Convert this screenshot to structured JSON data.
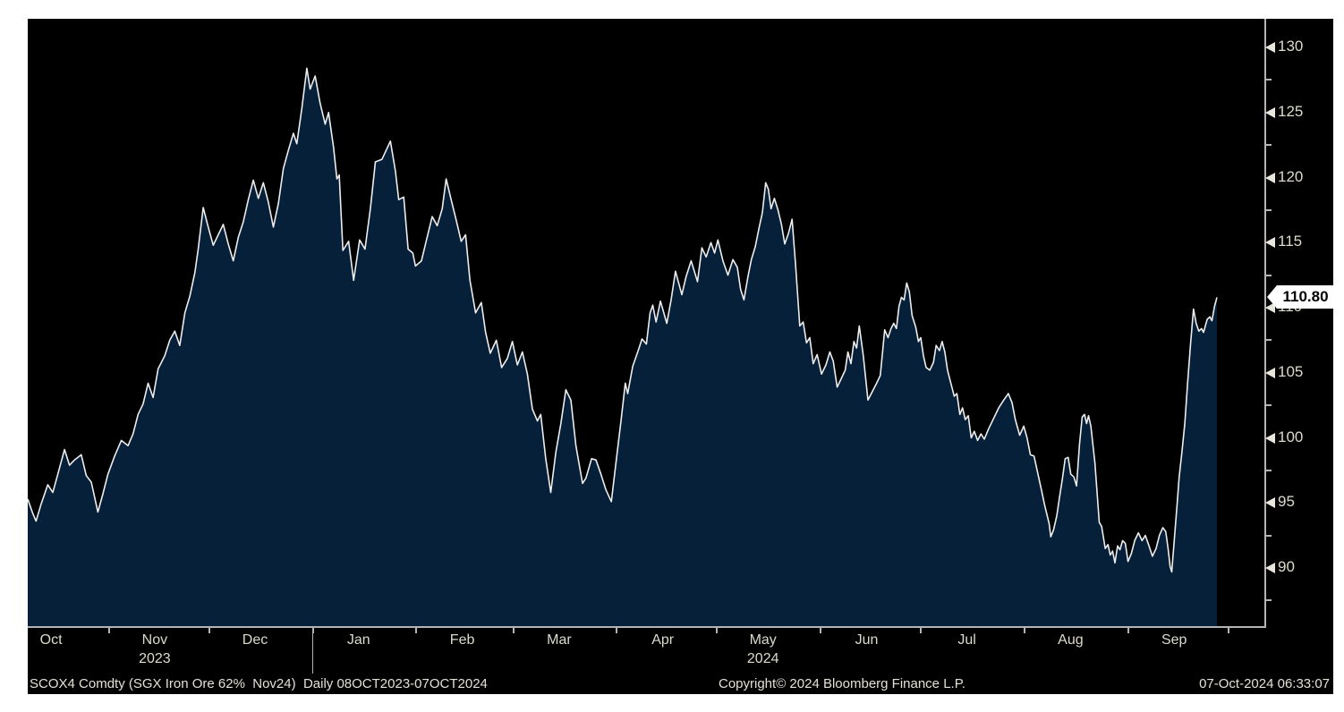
{
  "colors": {
    "page_bg": "#ffffff",
    "panel_bg": "#000000",
    "area_fill": "#07203a",
    "line": "#ededed",
    "axis": "#b4b4b4",
    "tick_label": "#dddacb",
    "footer_text": "#e4e1d6",
    "price_tag_bg": "#ffffff",
    "price_tag_text": "#000000"
  },
  "footer": {
    "left": "SCOX4 Comdty (SGX Iron Ore 62%  Nov24)  Daily 08OCT2023-07OCT2024",
    "center": "Copyright© 2024 Bloomberg Finance L.P.",
    "right": "07-Oct-2024 06:33:07"
  },
  "chart_data": {
    "type": "area",
    "title": "SCOX4 Comdty (SGX Iron Ore 62% Nov24) Daily 08OCT2023-07OCT2024",
    "security": "SCOX4 Comdty",
    "description": "SGX Iron Ore 62% Nov24",
    "period": "Daily 08OCT2023-07OCT2024",
    "last_price": "110.80",
    "legend_position": "none",
    "grid": false,
    "y_axis": {
      "side": "right",
      "major_ticks": [
        130,
        125,
        120,
        115,
        110,
        105,
        100,
        95,
        90
      ],
      "minor_ticks": [
        127.5,
        122.5,
        117.5,
        112.5,
        107.5,
        102.5,
        97.5,
        92.5,
        87.5
      ],
      "top_value": 132.2,
      "bottom_value": 85.5
    },
    "x_axis": {
      "domain_days": 370,
      "start_date": "08OCT2023",
      "end_date": "07OCT2024",
      "month_start_ticks_d": [
        24,
        54,
        85,
        116,
        145,
        176,
        206,
        237,
        267,
        298,
        329,
        359
      ],
      "month_labels": [
        {
          "label": "Oct",
          "d": 7
        },
        {
          "label": "Nov",
          "d": 38
        },
        {
          "label": "Dec",
          "d": 68
        },
        {
          "label": "Jan",
          "d": 99
        },
        {
          "label": "Feb",
          "d": 130
        },
        {
          "label": "Mar",
          "d": 159
        },
        {
          "label": "Apr",
          "d": 190
        },
        {
          "label": "May",
          "d": 220
        },
        {
          "label": "Jun",
          "d": 251
        },
        {
          "label": "Jul",
          "d": 281
        },
        {
          "label": "Aug",
          "d": 312
        },
        {
          "label": "Sep",
          "d": 343
        }
      ],
      "year_labels": [
        {
          "label": "2023",
          "d": 38
        },
        {
          "label": "2024",
          "d": 220
        }
      ],
      "year_separator_d": 85
    },
    "series_name": "SGX Iron Ore 62% Nov24 price (USD/t)",
    "series": [
      [
        0,
        95.3
      ],
      [
        1.5,
        94.2
      ],
      [
        2.5,
        93.6
      ],
      [
        4,
        94.9
      ],
      [
        6,
        96.4
      ],
      [
        7.5,
        95.8
      ],
      [
        9,
        97.2
      ],
      [
        11,
        99.1
      ],
      [
        12.5,
        97.9
      ],
      [
        14,
        98.3
      ],
      [
        16,
        98.7
      ],
      [
        17.5,
        97.1
      ],
      [
        19,
        96.6
      ],
      [
        21,
        94.3
      ],
      [
        22.5,
        95.7
      ],
      [
        24,
        97.2
      ],
      [
        26,
        98.6
      ],
      [
        28,
        99.8
      ],
      [
        30,
        99.4
      ],
      [
        31.5,
        100.3
      ],
      [
        33,
        101.8
      ],
      [
        34.5,
        102.6
      ],
      [
        36,
        104.2
      ],
      [
        37.5,
        103.1
      ],
      [
        39,
        105.3
      ],
      [
        41,
        106.3
      ],
      [
        42.5,
        107.5
      ],
      [
        44,
        108.2
      ],
      [
        45.5,
        107.1
      ],
      [
        47,
        109.6
      ],
      [
        48.5,
        110.9
      ],
      [
        50,
        112.7
      ],
      [
        51,
        114.5
      ],
      [
        52.5,
        117.7
      ],
      [
        54,
        116.2
      ],
      [
        55.5,
        114.8
      ],
      [
        57,
        115.6
      ],
      [
        58.5,
        116.4
      ],
      [
        60,
        114.9
      ],
      [
        61.5,
        113.6
      ],
      [
        63,
        115.4
      ],
      [
        64.5,
        116.6
      ],
      [
        66,
        118.3
      ],
      [
        67.5,
        119.8
      ],
      [
        69,
        118.4
      ],
      [
        70.5,
        119.6
      ],
      [
        72,
        118.1
      ],
      [
        73.5,
        116.2
      ],
      [
        75,
        118.0
      ],
      [
        76.5,
        120.7
      ],
      [
        78,
        122.1
      ],
      [
        79.5,
        123.4
      ],
      [
        80.5,
        122.6
      ],
      [
        82,
        125.3
      ],
      [
        83.5,
        128.4
      ],
      [
        84.5,
        126.8
      ],
      [
        86,
        127.8
      ],
      [
        87.5,
        125.7
      ],
      [
        89,
        124.1
      ],
      [
        90,
        125.0
      ],
      [
        91.5,
        122.3
      ],
      [
        92.5,
        119.9
      ],
      [
        93.2,
        120.2
      ],
      [
        94.3,
        114.4
      ],
      [
        96,
        115.1
      ],
      [
        97.5,
        112.1
      ],
      [
        99.3,
        115.2
      ],
      [
        100.9,
        114.5
      ],
      [
        102.5,
        117.6
      ],
      [
        104,
        121.2
      ],
      [
        106,
        121.4
      ],
      [
        108.5,
        122.8
      ],
      [
        110,
        120.5
      ],
      [
        111,
        118.3
      ],
      [
        112.5,
        118.5
      ],
      [
        113.8,
        114.5
      ],
      [
        115.2,
        114.2
      ],
      [
        116,
        113.2
      ],
      [
        117.8,
        113.6
      ],
      [
        119.5,
        115.4
      ],
      [
        121,
        117.0
      ],
      [
        122.5,
        116.3
      ],
      [
        124,
        117.6
      ],
      [
        125.2,
        119.9
      ],
      [
        126.5,
        118.5
      ],
      [
        128.5,
        116.4
      ],
      [
        129.7,
        115.1
      ],
      [
        131,
        115.6
      ],
      [
        132.3,
        112.1
      ],
      [
        134,
        109.6
      ],
      [
        135.7,
        110.4
      ],
      [
        137,
        108.1
      ],
      [
        138.4,
        106.5
      ],
      [
        140.2,
        107.5
      ],
      [
        141.8,
        105.4
      ],
      [
        143.5,
        106.1
      ],
      [
        145,
        107.4
      ],
      [
        146.5,
        105.6
      ],
      [
        148,
        106.6
      ],
      [
        149.5,
        104.9
      ],
      [
        151,
        102.2
      ],
      [
        152.5,
        101.3
      ],
      [
        153.5,
        101.8
      ],
      [
        155,
        98.4
      ],
      [
        156.5,
        95.8
      ],
      [
        158,
        98.9
      ],
      [
        159.5,
        101.1
      ],
      [
        161,
        103.7
      ],
      [
        162.5,
        102.9
      ],
      [
        164,
        99.4
      ],
      [
        166,
        96.5
      ],
      [
        167,
        96.9
      ],
      [
        168.7,
        98.4
      ],
      [
        170,
        98.3
      ],
      [
        171.5,
        97.2
      ],
      [
        173,
        96.0
      ],
      [
        174.6,
        95.1
      ],
      [
        176,
        98.1
      ],
      [
        177.5,
        101.3
      ],
      [
        178.8,
        104.2
      ],
      [
        179.5,
        103.4
      ],
      [
        181,
        105.5
      ],
      [
        182.5,
        106.6
      ],
      [
        183.8,
        107.6
      ],
      [
        185.1,
        107.2
      ],
      [
        186.2,
        109.6
      ],
      [
        187,
        110.2
      ],
      [
        188,
        108.9
      ],
      [
        189.3,
        110.5
      ],
      [
        191.2,
        108.8
      ],
      [
        192.5,
        110.6
      ],
      [
        193.8,
        112.8
      ],
      [
        195.7,
        111.0
      ],
      [
        197,
        112.4
      ],
      [
        198.5,
        113.6
      ],
      [
        200.4,
        112.0
      ],
      [
        201.7,
        114.6
      ],
      [
        203,
        113.9
      ],
      [
        204.4,
        115.0
      ],
      [
        205.5,
        114.2
      ],
      [
        206.5,
        115.2
      ],
      [
        208,
        113.6
      ],
      [
        209.5,
        112.5
      ],
      [
        211,
        113.7
      ],
      [
        212.3,
        113.1
      ],
      [
        213.3,
        111.4
      ],
      [
        214.3,
        110.6
      ],
      [
        215.5,
        112.4
      ],
      [
        216.5,
        113.7
      ],
      [
        217.7,
        114.7
      ],
      [
        218.8,
        116.1
      ],
      [
        219.8,
        117.3
      ],
      [
        220.8,
        119.6
      ],
      [
        221.6,
        119.1
      ],
      [
        222.4,
        117.6
      ],
      [
        223.4,
        118.4
      ],
      [
        224.5,
        117.5
      ],
      [
        225.5,
        116.4
      ],
      [
        226.5,
        114.9
      ],
      [
        227.6,
        115.7
      ],
      [
        228.7,
        116.8
      ],
      [
        229.7,
        113.4
      ],
      [
        231,
        108.6
      ],
      [
        232,
        108.9
      ],
      [
        233,
        107.3
      ],
      [
        234,
        107.7
      ],
      [
        235,
        105.7
      ],
      [
        236.2,
        106.4
      ],
      [
        237.5,
        104.9
      ],
      [
        238.8,
        105.6
      ],
      [
        240,
        106.6
      ],
      [
        241,
        105.9
      ],
      [
        242.2,
        103.9
      ],
      [
        243.3,
        104.5
      ],
      [
        244.6,
        105.2
      ],
      [
        245.4,
        106.6
      ],
      [
        246.3,
        105.7
      ],
      [
        247.2,
        107.4
      ],
      [
        248,
        106.9
      ],
      [
        248.8,
        108.6
      ],
      [
        250,
        106.3
      ],
      [
        251.4,
        102.9
      ],
      [
        252.8,
        103.6
      ],
      [
        254,
        104.2
      ],
      [
        255.1,
        104.8
      ],
      [
        256.4,
        108.3
      ],
      [
        257.4,
        107.7
      ],
      [
        258.3,
        108.4
      ],
      [
        259.1,
        108.8
      ],
      [
        259.9,
        108.4
      ],
      [
        260.7,
        110.1
      ],
      [
        261.4,
        110.8
      ],
      [
        262.2,
        110.6
      ],
      [
        263,
        111.9
      ],
      [
        263.8,
        111.2
      ],
      [
        264.6,
        109.4
      ],
      [
        265.7,
        108.5
      ],
      [
        266.5,
        107.4
      ],
      [
        267.2,
        107.7
      ],
      [
        268,
        106.3
      ],
      [
        268.8,
        105.4
      ],
      [
        269.9,
        105.2
      ],
      [
        271,
        105.8
      ],
      [
        271.8,
        107.1
      ],
      [
        272.8,
        106.7
      ],
      [
        273.6,
        107.4
      ],
      [
        274.4,
        106.6
      ],
      [
        275.2,
        105.2
      ],
      [
        276.3,
        104.1
      ],
      [
        277.2,
        103.2
      ],
      [
        278,
        103.4
      ],
      [
        278.9,
        101.8
      ],
      [
        279.7,
        102.3
      ],
      [
        280.5,
        101.4
      ],
      [
        281.4,
        101.7
      ],
      [
        282.3,
        100.0
      ],
      [
        283.2,
        100.5
      ],
      [
        284.2,
        99.8
      ],
      [
        285.2,
        100.3
      ],
      [
        286.2,
        99.9
      ],
      [
        287.5,
        100.7
      ],
      [
        289,
        101.5
      ],
      [
        290.5,
        102.3
      ],
      [
        292,
        102.9
      ],
      [
        293.4,
        103.4
      ],
      [
        294.5,
        102.7
      ],
      [
        295.5,
        101.4
      ],
      [
        296.8,
        100.2
      ],
      [
        298,
        100.9
      ],
      [
        299,
        100.0
      ],
      [
        300,
        98.7
      ],
      [
        301.1,
        98.6
      ],
      [
        302.1,
        97.4
      ],
      [
        303.4,
        95.9
      ],
      [
        304.2,
        94.9
      ],
      [
        305.6,
        93.4
      ],
      [
        306.1,
        92.4
      ],
      [
        306.9,
        92.9
      ],
      [
        307.9,
        94.0
      ],
      [
        308.7,
        95.4
      ],
      [
        309.6,
        96.9
      ],
      [
        310.4,
        98.4
      ],
      [
        311.3,
        98.5
      ],
      [
        312.1,
        97.2
      ],
      [
        313,
        97.0
      ],
      [
        313.8,
        96.3
      ],
      [
        314.7,
        99.5
      ],
      [
        315.5,
        101.6
      ],
      [
        316.2,
        101.8
      ],
      [
        316.8,
        101.1
      ],
      [
        317.4,
        101.7
      ],
      [
        318.1,
        100.9
      ],
      [
        319.3,
        98.1
      ],
      [
        320.6,
        93.5
      ],
      [
        321.3,
        93.2
      ],
      [
        322.4,
        91.5
      ],
      [
        323.2,
        91.8
      ],
      [
        323.9,
        91.0
      ],
      [
        324.6,
        91.3
      ],
      [
        325.3,
        90.4
      ],
      [
        326.1,
        91.7
      ],
      [
        326.8,
        91.4
      ],
      [
        327.6,
        92.1
      ],
      [
        328.4,
        91.9
      ],
      [
        329.2,
        90.5
      ],
      [
        330.2,
        91.1
      ],
      [
        331.2,
        92.1
      ],
      [
        332.3,
        92.7
      ],
      [
        333.4,
        92.1
      ],
      [
        334.4,
        92.5
      ],
      [
        335.5,
        91.7
      ],
      [
        336.5,
        90.9
      ],
      [
        337.6,
        91.5
      ],
      [
        338.6,
        92.5
      ],
      [
        339.6,
        93.1
      ],
      [
        340.5,
        92.8
      ],
      [
        341.2,
        91.5
      ],
      [
        341.8,
        90.1
      ],
      [
        342.3,
        89.7
      ],
      [
        343.3,
        93.0
      ],
      [
        343.9,
        94.9
      ],
      [
        344.5,
        97.0
      ],
      [
        345.2,
        98.6
      ],
      [
        346.2,
        101.1
      ],
      [
        347.0,
        104.1
      ],
      [
        347.9,
        107.2
      ],
      [
        348.8,
        109.9
      ],
      [
        349.6,
        108.8
      ],
      [
        350.4,
        108.2
      ],
      [
        351.2,
        108.4
      ],
      [
        351.8,
        108.1
      ],
      [
        352.9,
        109.1
      ],
      [
        353.7,
        109.3
      ],
      [
        354.3,
        109.0
      ],
      [
        355.1,
        110.1
      ],
      [
        355.8,
        110.8
      ]
    ]
  }
}
